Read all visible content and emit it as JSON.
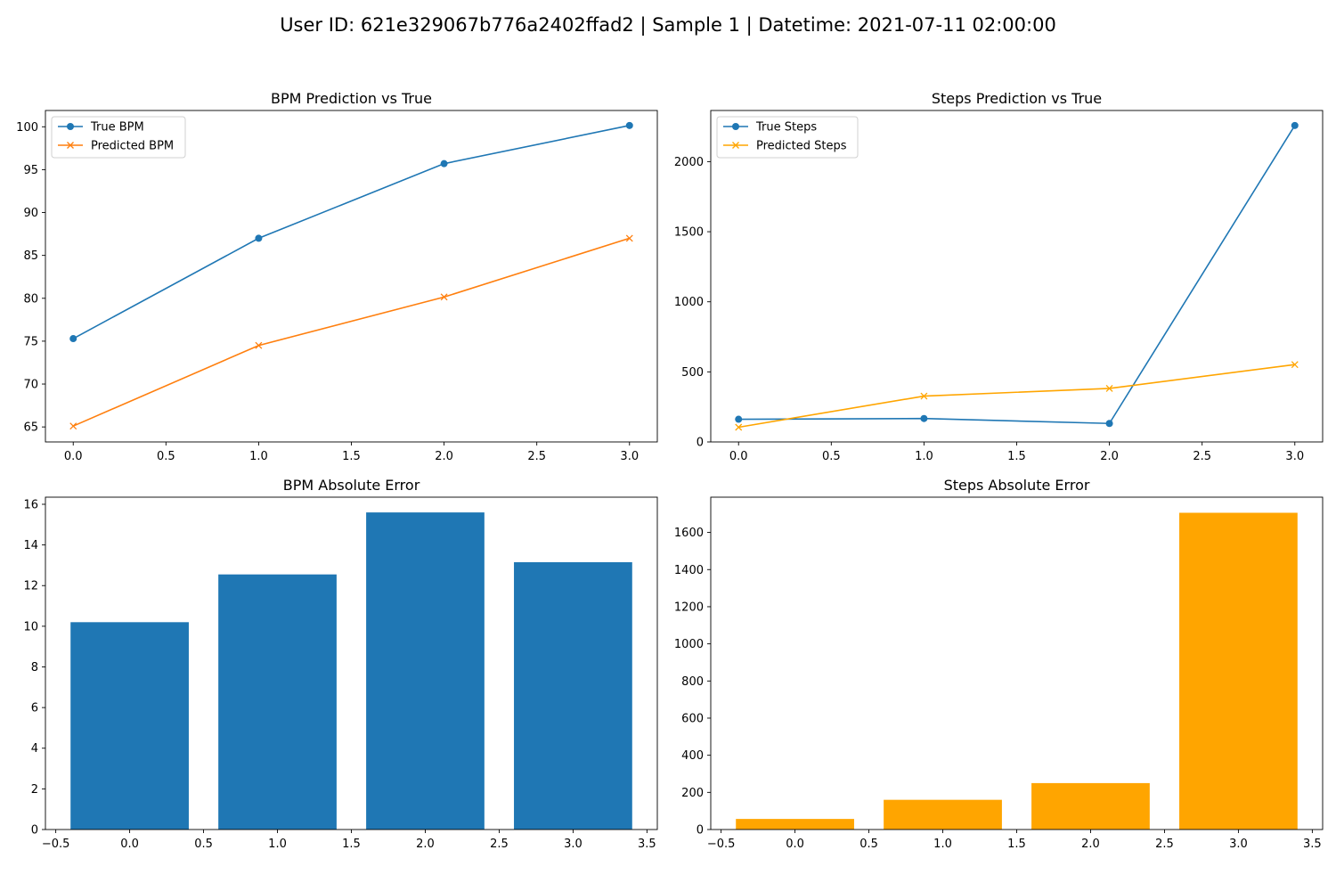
{
  "suptitle": "User ID: 621e329067b776a2402ffad2 | Sample 1 | Datetime: 2021-07-11 02:00:00",
  "colors": {
    "blue": "#1f77b4",
    "orange_bpm": "#ff7f0e",
    "orange_steps": "#ffa500"
  },
  "chart_data": [
    {
      "id": "bpm_line",
      "type": "line",
      "title": "BPM Prediction vs True",
      "xlabel": "",
      "ylabel": "",
      "xlim": [
        -0.15,
        3.15
      ],
      "ylim": [
        63.25,
        101.9
      ],
      "xticks": [
        0.0,
        0.5,
        1.0,
        1.5,
        2.0,
        2.5,
        3.0
      ],
      "xtick_labels": [
        "0.0",
        "0.5",
        "1.0",
        "1.5",
        "2.0",
        "2.5",
        "3.0"
      ],
      "yticks": [
        65,
        70,
        75,
        80,
        85,
        90,
        95,
        100
      ],
      "ytick_labels": [
        "65",
        "70",
        "75",
        "80",
        "85",
        "90",
        "95",
        "100"
      ],
      "legend": "upper-left",
      "x": [
        0,
        1,
        2,
        3
      ],
      "series": [
        {
          "name": "True BPM",
          "values": [
            75.3,
            87.0,
            95.7,
            100.15
          ],
          "marker": "o",
          "color": "#1f77b4"
        },
        {
          "name": "Predicted BPM",
          "values": [
            65.1,
            74.5,
            80.15,
            87.0
          ],
          "marker": "x",
          "color": "#ff7f0e"
        }
      ]
    },
    {
      "id": "steps_line",
      "type": "line",
      "title": "Steps Prediction vs True",
      "xlabel": "",
      "ylabel": "",
      "xlim": [
        -0.15,
        3.15
      ],
      "ylim": [
        0,
        2365
      ],
      "xticks": [
        0.0,
        0.5,
        1.0,
        1.5,
        2.0,
        2.5,
        3.0
      ],
      "xtick_labels": [
        "0.0",
        "0.5",
        "1.0",
        "1.5",
        "2.0",
        "2.5",
        "3.0"
      ],
      "yticks": [
        0,
        500,
        1000,
        1500,
        2000
      ],
      "ytick_labels": [
        "0",
        "500",
        "1000",
        "1500",
        "2000"
      ],
      "legend": "upper-left",
      "x": [
        0,
        1,
        2,
        3
      ],
      "series": [
        {
          "name": "True Steps",
          "values": [
            162,
            167,
            132,
            2258
          ],
          "marker": "o",
          "color": "#1f77b4"
        },
        {
          "name": "Predicted Steps",
          "values": [
            105,
            327,
            382,
            552
          ],
          "marker": "x",
          "color": "#ffa500"
        }
      ]
    },
    {
      "id": "bpm_error",
      "type": "bar",
      "title": "BPM Absolute Error",
      "xlabel": "",
      "ylabel": "",
      "xlim": [
        -0.57,
        3.57
      ],
      "ylim": [
        0,
        16.35
      ],
      "xticks": [
        -0.5,
        0.0,
        0.5,
        1.0,
        1.5,
        2.0,
        2.5,
        3.0,
        3.5
      ],
      "xtick_labels": [
        "−0.5",
        "0.0",
        "0.5",
        "1.0",
        "1.5",
        "2.0",
        "2.5",
        "3.0",
        "3.5"
      ],
      "yticks": [
        0,
        2,
        4,
        6,
        8,
        10,
        12,
        14,
        16
      ],
      "ytick_labels": [
        "0",
        "2",
        "4",
        "6",
        "8",
        "10",
        "12",
        "14",
        "16"
      ],
      "x": [
        0,
        1,
        2,
        3
      ],
      "bar_width": 0.8,
      "values": [
        10.2,
        12.55,
        15.6,
        13.15
      ],
      "color": "#1f77b4"
    },
    {
      "id": "steps_error",
      "type": "bar",
      "title": "Steps Absolute Error",
      "xlabel": "",
      "ylabel": "",
      "xlim": [
        -0.57,
        3.57
      ],
      "ylim": [
        0,
        1790
      ],
      "xticks": [
        -0.5,
        0.0,
        0.5,
        1.0,
        1.5,
        2.0,
        2.5,
        3.0,
        3.5
      ],
      "xtick_labels": [
        "−0.5",
        "0.0",
        "0.5",
        "1.0",
        "1.5",
        "2.0",
        "2.5",
        "3.0",
        "3.5"
      ],
      "yticks": [
        0,
        200,
        400,
        600,
        800,
        1000,
        1200,
        1400,
        1600
      ],
      "ytick_labels": [
        "0",
        "200",
        "400",
        "600",
        "800",
        "1000",
        "1200",
        "1400",
        "1600"
      ],
      "x": [
        0,
        1,
        2,
        3
      ],
      "bar_width": 0.8,
      "values": [
        57,
        160,
        250,
        1706
      ],
      "color": "#ffa500"
    }
  ]
}
